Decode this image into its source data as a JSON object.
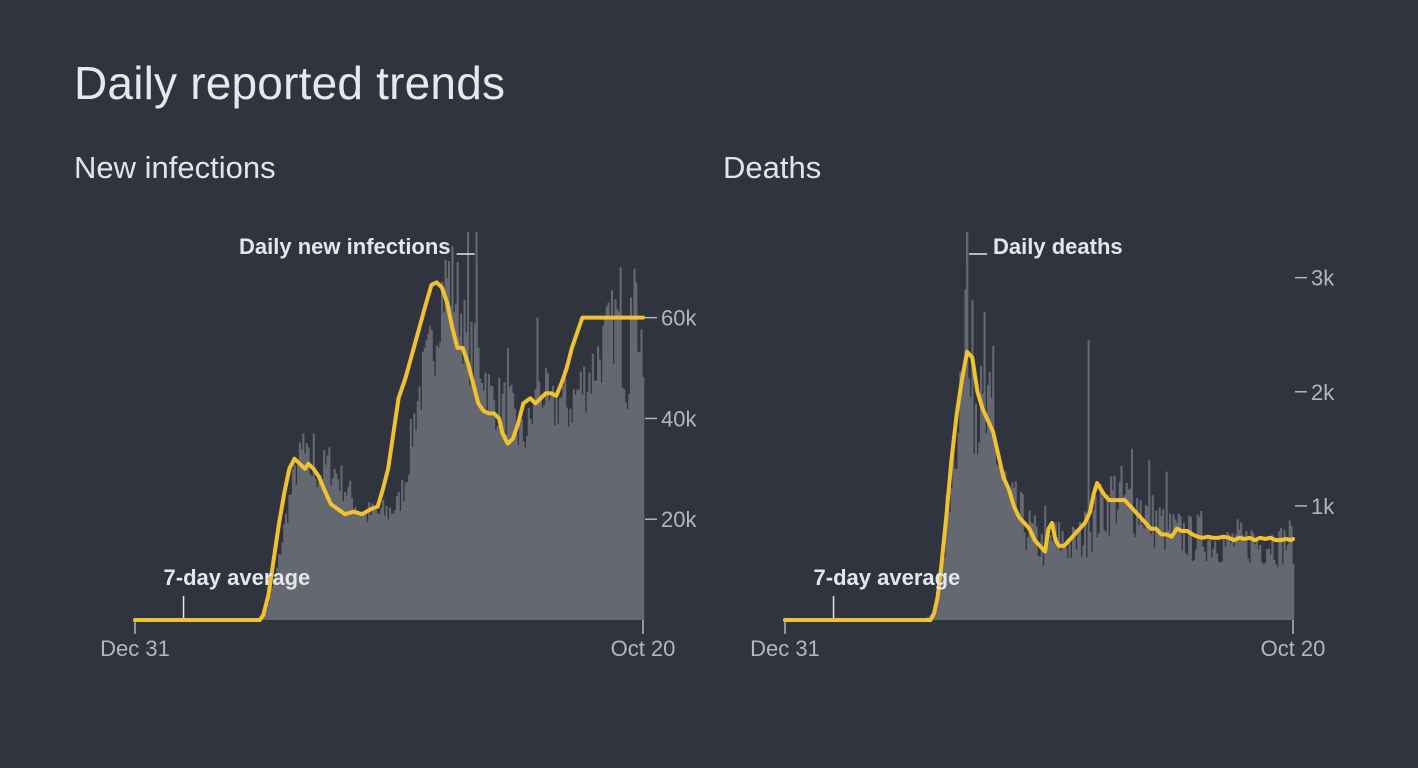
{
  "page": {
    "title": "Daily reported trends"
  },
  "colors": {
    "background": "#2f343f",
    "bars": "#656870",
    "average": "#f0c230",
    "ticks": "#b3b6bd",
    "text": "#e4e6ea"
  },
  "chart_data": [
    {
      "type": "bar",
      "title": "New infections",
      "x_start_label": "Dec 31",
      "x_end_label": "Oct 20",
      "num_days": 294,
      "ylim": [
        0,
        77000
      ],
      "y_ticks": [
        20000,
        40000,
        60000
      ],
      "y_tick_labels": [
        "20k",
        "40k",
        "60k"
      ],
      "bar_label": "Daily new infections",
      "average_label": "7-day average",
      "average_anchor_day": 28,
      "bar_label_anchor_day": 197,
      "series": [
        {
          "name": "Daily new infections",
          "kind": "bars",
          "keyframes": [
            [
              0,
              0
            ],
            [
              70,
              0
            ],
            [
              76,
              2000
            ],
            [
              82,
              10000
            ],
            [
              88,
              22000
            ],
            [
              93,
              30000
            ],
            [
              97,
              33000
            ],
            [
              101,
              30000
            ],
            [
              106,
              29000
            ],
            [
              112,
              31000
            ],
            [
              120,
              27000
            ],
            [
              127,
              23000
            ],
            [
              133,
              21000
            ],
            [
              140,
              21000
            ],
            [
              146,
              21500
            ],
            [
              152,
              23000
            ],
            [
              156,
              28000
            ],
            [
              159,
              35000
            ],
            [
              163,
              44000
            ],
            [
              168,
              50000
            ],
            [
              173,
              56000
            ],
            [
              176,
              64000
            ],
            [
              180,
              68000
            ],
            [
              183,
              67000
            ],
            [
              187,
              63000
            ],
            [
              191,
              55000
            ],
            [
              196,
              52000
            ],
            [
              200,
              51000
            ],
            [
              205,
              44000
            ],
            [
              210,
              43000
            ],
            [
              216,
              42000
            ],
            [
              220,
              38000
            ],
            [
              223,
              36000
            ],
            [
              227,
              38000
            ],
            [
              231,
              43000
            ],
            [
              235,
              46000
            ],
            [
              240,
              41000
            ],
            [
              245,
              44000
            ],
            [
              250,
              42000
            ],
            [
              255,
              45000
            ],
            [
              259,
              47000
            ],
            [
              263,
              49000
            ],
            [
              267,
              52000
            ],
            [
              271,
              55000
            ],
            [
              275,
              58000
            ],
            [
              278,
              60000
            ],
            [
              281,
              53000
            ],
            [
              284,
              47000
            ],
            [
              288,
              62000
            ],
            [
              291,
              58000
            ],
            [
              293,
              52000
            ]
          ],
          "noise_pct": 0.14,
          "spikes": [
            [
              192,
              77000
            ],
            [
              280,
              70000
            ],
            [
              286,
              64000
            ],
            [
              289,
              67000
            ],
            [
              197,
              71000
            ],
            [
              215,
              54000
            ],
            [
              232,
              60000
            ],
            [
              103,
              37000
            ],
            [
              97,
              37000
            ]
          ]
        },
        {
          "name": "7-day average",
          "kind": "line",
          "keyframes": [
            [
              0,
              0
            ],
            [
              72,
              0
            ],
            [
              74,
              1000
            ],
            [
              77,
              5000
            ],
            [
              80,
              12000
            ],
            [
              83,
              19000
            ],
            [
              86,
              25000
            ],
            [
              89,
              30000
            ],
            [
              92,
              32000
            ],
            [
              95,
              31000
            ],
            [
              98,
              30000
            ],
            [
              100,
              31000
            ],
            [
              103,
              30000
            ],
            [
              106,
              28500
            ],
            [
              109,
              26000
            ],
            [
              113,
              23000
            ],
            [
              117,
              22000
            ],
            [
              121,
              21000
            ],
            [
              126,
              21500
            ],
            [
              131,
              21000
            ],
            [
              136,
              22000
            ],
            [
              140,
              22500
            ],
            [
              143,
              26000
            ],
            [
              146,
              30000
            ],
            [
              149,
              37000
            ],
            [
              152,
              44000
            ],
            [
              156,
              48000
            ],
            [
              160,
              53000
            ],
            [
              164,
              58000
            ],
            [
              168,
              63000
            ],
            [
              171,
              66500
            ],
            [
              174,
              67000
            ],
            [
              177,
              66000
            ],
            [
              180,
              63000
            ],
            [
              183,
              58000
            ],
            [
              186,
              54000
            ],
            [
              189,
              54000
            ],
            [
              192,
              51000
            ],
            [
              195,
              47000
            ],
            [
              198,
              43000
            ],
            [
              201,
              41500
            ],
            [
              204,
              41000
            ],
            [
              207,
              41000
            ],
            [
              210,
              40000
            ],
            [
              212,
              37000
            ],
            [
              215,
              35000
            ],
            [
              218,
              36000
            ],
            [
              221,
              39000
            ],
            [
              224,
              43000
            ],
            [
              228,
              44000
            ],
            [
              231,
              43000
            ],
            [
              234,
              44000
            ],
            [
              237,
              45000
            ],
            [
              240,
              45000
            ],
            [
              243,
              44500
            ],
            [
              246,
              47000
            ],
            [
              249,
              50000
            ],
            [
              252,
              54000
            ],
            [
              255,
              57000
            ],
            [
              258,
              60000
            ]
          ]
        }
      ]
    },
    {
      "type": "bar",
      "title": "Deaths",
      "x_start_label": "Dec 31",
      "x_end_label": "Oct 20",
      "num_days": 294,
      "ylim": [
        0,
        3400
      ],
      "y_ticks": [
        1000,
        2000,
        3000
      ],
      "y_tick_labels": [
        "1k",
        "2k",
        "3k"
      ],
      "bar_label": "Daily deaths",
      "average_label": "7-day average",
      "average_anchor_day": 28,
      "bar_label_anchor_day": 105,
      "series": [
        {
          "name": "Daily deaths",
          "kind": "bars",
          "keyframes": [
            [
              0,
              0
            ],
            [
              80,
              0
            ],
            [
              85,
              50
            ],
            [
              88,
              200
            ],
            [
              92,
              700
            ],
            [
              96,
              1400
            ],
            [
              100,
              1900
            ],
            [
              104,
              2300
            ],
            [
              107,
              2200
            ],
            [
              110,
              2000
            ],
            [
              114,
              1700
            ],
            [
              118,
              1700
            ],
            [
              122,
              1500
            ],
            [
              126,
              1200
            ],
            [
              130,
              1000
            ],
            [
              135,
              900
            ],
            [
              140,
              800
            ],
            [
              145,
              700
            ],
            [
              150,
              600
            ],
            [
              155,
              700
            ],
            [
              160,
              700
            ],
            [
              165,
              650
            ],
            [
              170,
              700
            ],
            [
              175,
              800
            ],
            [
              180,
              900
            ],
            [
              185,
              1000
            ],
            [
              190,
              1100
            ],
            [
              195,
              1050
            ],
            [
              200,
              1000
            ],
            [
              205,
              1000
            ],
            [
              210,
              900
            ],
            [
              215,
              850
            ],
            [
              220,
              800
            ],
            [
              225,
              750
            ],
            [
              230,
              750
            ],
            [
              235,
              700
            ],
            [
              240,
              750
            ],
            [
              245,
              700
            ],
            [
              250,
              700
            ],
            [
              255,
              650
            ],
            [
              260,
              700
            ],
            [
              265,
              650
            ],
            [
              270,
              700
            ],
            [
              275,
              650
            ],
            [
              280,
              700
            ],
            [
              285,
              650
            ],
            [
              290,
              700
            ],
            [
              293,
              700
            ]
          ],
          "noise_pct": 0.3,
          "spikes": [
            [
              105,
              3400
            ],
            [
              104,
              2900
            ],
            [
              108,
              2800
            ],
            [
              115,
              2700
            ],
            [
              120,
              2400
            ],
            [
              175,
              2450
            ],
            [
              200,
              1500
            ],
            [
              210,
              1400
            ],
            [
              220,
              1300
            ],
            [
              150,
              1000
            ]
          ]
        },
        {
          "name": "7-day average",
          "kind": "line",
          "keyframes": [
            [
              0,
              0
            ],
            [
              84,
              0
            ],
            [
              86,
              60
            ],
            [
              88,
              200
            ],
            [
              90,
              450
            ],
            [
              93,
              900
            ],
            [
              96,
              1400
            ],
            [
              99,
              1800
            ],
            [
              102,
              2100
            ],
            [
              105,
              2350
            ],
            [
              108,
              2300
            ],
            [
              111,
              2000
            ],
            [
              114,
              1850
            ],
            [
              117,
              1750
            ],
            [
              120,
              1650
            ],
            [
              123,
              1450
            ],
            [
              126,
              1250
            ],
            [
              129,
              1150
            ],
            [
              132,
              1000
            ],
            [
              135,
              900
            ],
            [
              138,
              850
            ],
            [
              141,
              800
            ],
            [
              144,
              700
            ],
            [
              147,
              650
            ],
            [
              150,
              600
            ],
            [
              152,
              800
            ],
            [
              154,
              850
            ],
            [
              156,
              700
            ],
            [
              158,
              650
            ],
            [
              161,
              650
            ],
            [
              164,
              700
            ],
            [
              167,
              750
            ],
            [
              170,
              800
            ],
            [
              173,
              850
            ],
            [
              176,
              950
            ],
            [
              178,
              1100
            ],
            [
              180,
              1200
            ],
            [
              182,
              1150
            ],
            [
              184,
              1100
            ],
            [
              187,
              1050
            ],
            [
              190,
              1050
            ],
            [
              193,
              1050
            ],
            [
              196,
              1050
            ],
            [
              199,
              1000
            ],
            [
              202,
              950
            ],
            [
              205,
              900
            ],
            [
              208,
              850
            ],
            [
              211,
              800
            ],
            [
              214,
              800
            ],
            [
              217,
              750
            ],
            [
              220,
              750
            ],
            [
              223,
              730
            ],
            [
              226,
              800
            ],
            [
              229,
              780
            ],
            [
              232,
              780
            ],
            [
              235,
              750
            ],
            [
              238,
              730
            ],
            [
              241,
              720
            ],
            [
              244,
              730
            ],
            [
              247,
              720
            ],
            [
              250,
              720
            ],
            [
              253,
              730
            ],
            [
              256,
              720
            ],
            [
              259,
              700
            ],
            [
              262,
              720
            ],
            [
              265,
              710
            ],
            [
              268,
              720
            ],
            [
              271,
              700
            ],
            [
              274,
              720
            ],
            [
              277,
              710
            ],
            [
              280,
              720
            ],
            [
              283,
              700
            ],
            [
              286,
              700
            ],
            [
              289,
              710
            ],
            [
              292,
              700
            ],
            [
              293,
              710
            ]
          ]
        }
      ]
    }
  ]
}
